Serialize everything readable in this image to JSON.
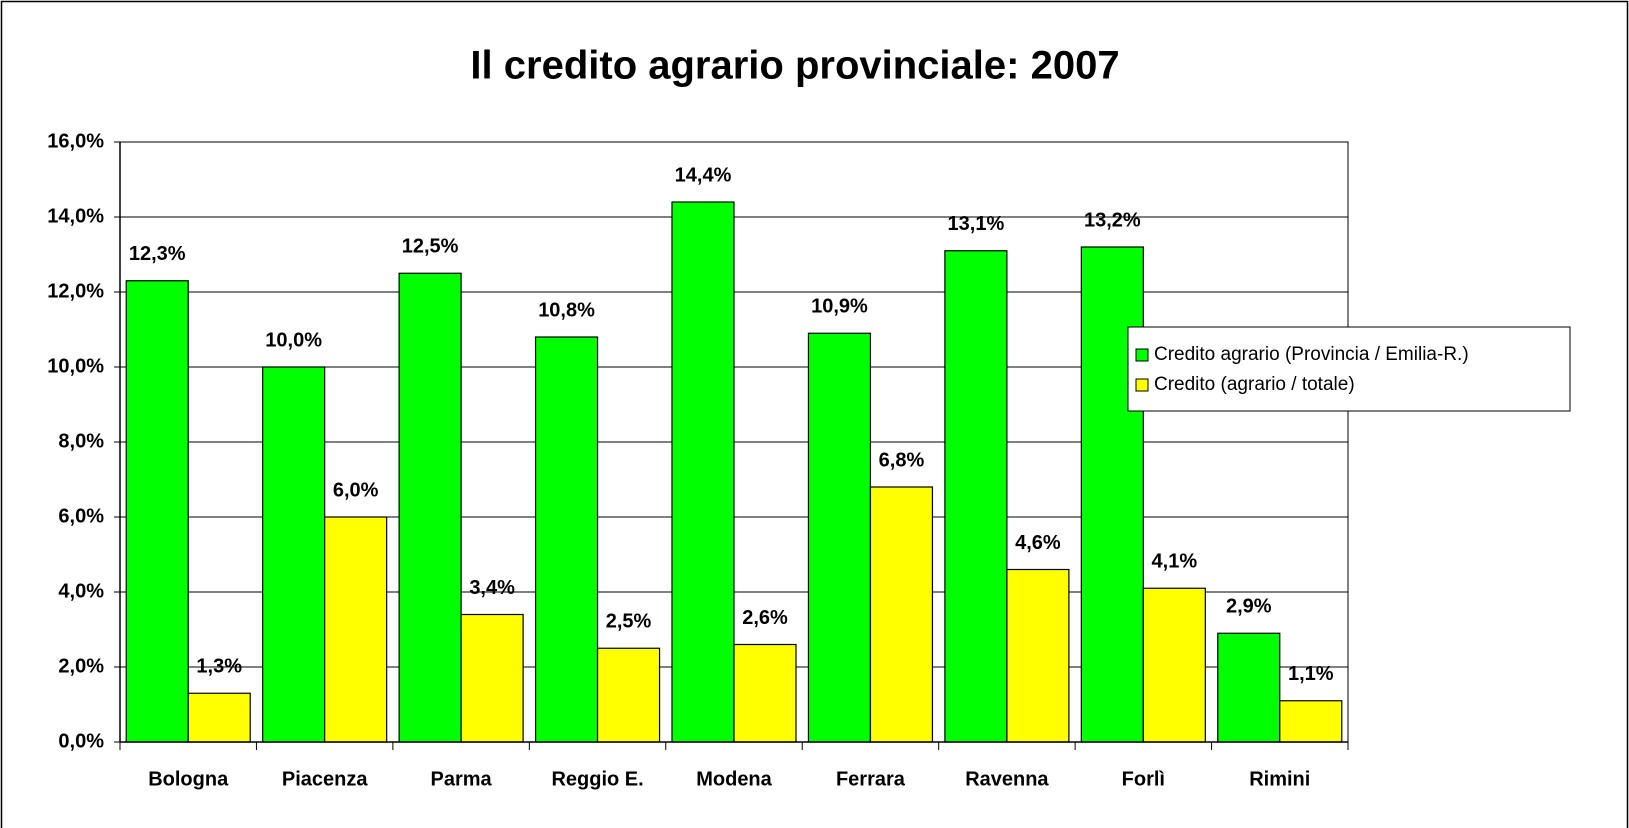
{
  "chart_data": {
    "type": "bar",
    "title": "Il credito agrario provinciale: 2007",
    "categories": [
      "Bologna",
      "Piacenza",
      "Parma",
      "Reggio E.",
      "Modena",
      "Ferrara",
      "Ravenna",
      "Forlì",
      "Rimini"
    ],
    "series": [
      {
        "name": "Credito agrario (Provincia / Emilia-R.)",
        "color": "#00ff00",
        "values": [
          12.3,
          10.0,
          12.5,
          10.8,
          14.4,
          10.9,
          13.1,
          13.2,
          2.9
        ],
        "value_labels": [
          "12,3%",
          "10,0%",
          "12,5%",
          "10,8%",
          "14,4%",
          "10,9%",
          "13,1%",
          "13,2%",
          "2,9%"
        ]
      },
      {
        "name": "Credito (agrario / totale)",
        "color": "#ffff00",
        "values": [
          1.3,
          6.0,
          3.4,
          2.5,
          2.6,
          6.8,
          4.6,
          4.1,
          1.1
        ],
        "value_labels": [
          "1,3%",
          "6,0%",
          "3,4%",
          "2,5%",
          "2,6%",
          "6,8%",
          "4,6%",
          "4,1%",
          "1,1%"
        ]
      }
    ],
    "ylim": [
      0,
      16
    ],
    "yticks": [
      {
        "value": 0,
        "label": "0,0%"
      },
      {
        "value": 2,
        "label": "2,0%"
      },
      {
        "value": 4,
        "label": "4,0%"
      },
      {
        "value": 6,
        "label": "6,0%"
      },
      {
        "value": 8,
        "label": "8,0%"
      },
      {
        "value": 10,
        "label": "10,0%"
      },
      {
        "value": 12,
        "label": "12,0%"
      },
      {
        "value": 14,
        "label": "14,0%"
      },
      {
        "value": 16,
        "label": "16,0%"
      }
    ],
    "grid": true
  }
}
